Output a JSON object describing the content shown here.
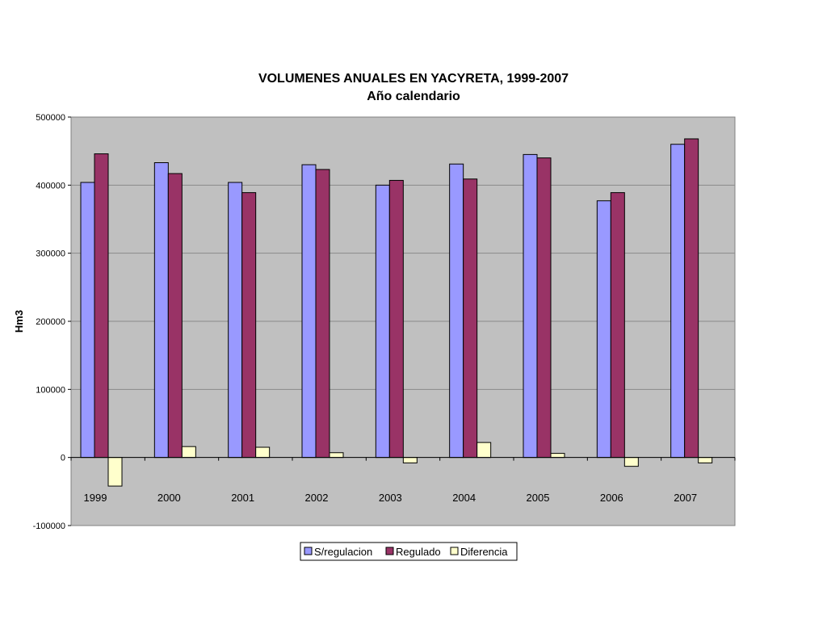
{
  "chart_data": {
    "type": "bar",
    "title": "VOLUMENES ANUALES EN YACYRETA, 1999-2007",
    "subtitle": "Año calendario",
    "xlabel": "",
    "ylabel": "Hm3",
    "ylim": [
      -100000,
      500000
    ],
    "yticks": [
      -100000,
      0,
      100000,
      200000,
      300000,
      400000,
      500000
    ],
    "ytick_labels": [
      "-100000",
      "0",
      "100000",
      "200000",
      "300000",
      "400000",
      "500000"
    ],
    "grid": true,
    "legend_position": "bottom",
    "categories": [
      "1999",
      "2000",
      "2001",
      "2002",
      "2003",
      "2004",
      "2005",
      "2006",
      "2007"
    ],
    "series": [
      {
        "name": "S/regulacion",
        "color": "#9999FF",
        "values": [
          404000,
          433000,
          404000,
          430000,
          400000,
          431000,
          445000,
          377000,
          460000
        ]
      },
      {
        "name": "Regulado",
        "color": "#993366",
        "values": [
          446000,
          417000,
          389000,
          423000,
          407000,
          409000,
          440000,
          389000,
          468000
        ]
      },
      {
        "name": "Diferencia",
        "color": "#FFFFCC",
        "values": [
          -42000,
          16000,
          15000,
          7000,
          -8000,
          22000,
          6000,
          -13000,
          -8000
        ]
      }
    ]
  }
}
